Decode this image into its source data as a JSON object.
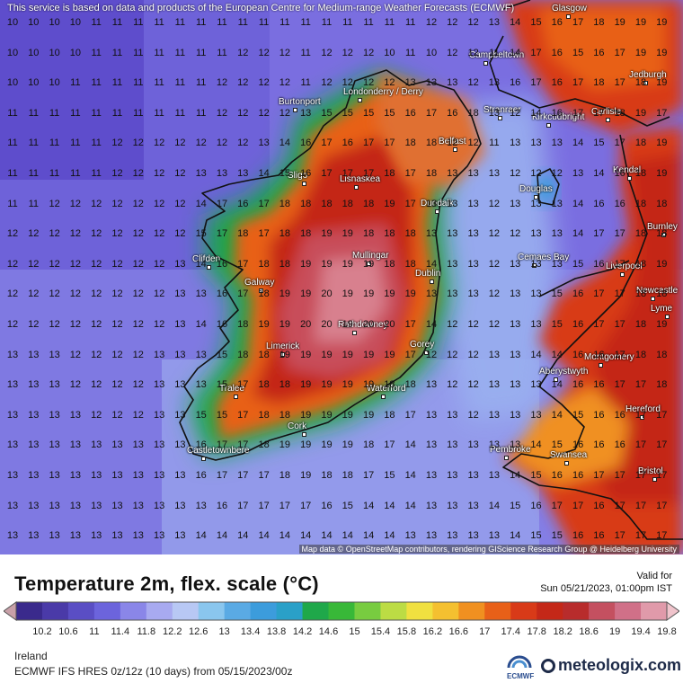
{
  "map": {
    "notice": "This service is based on data and products of the European Centre for Medium-range Weather Forecasts (ECMWF)",
    "attribution": "Map data © OpenStreetMap contributors, rendering GIScience Research Group @ Heidelberg University",
    "cities": [
      "Glasgow",
      "Campbeltown",
      "Jedburgh",
      "Londonderry / Derry",
      "Burtonport",
      "Stranraer",
      "Kirkcudbright",
      "Carlisle",
      "Belfast",
      "Sligo",
      "Lisnaskea",
      "Kendal",
      "Douglas",
      "Dundalk",
      "Burnley",
      "Clifden",
      "Mullingar",
      "Cemaes Bay",
      "Liverpool",
      "Dublin",
      "Galway",
      "Newcastle",
      "Rathdowney",
      "Lyme",
      "Limerick",
      "Gorey",
      "Montgomery",
      "Aberystwyth",
      "Tralee",
      "Waterford",
      "Hereford",
      "Cork",
      "Pembroke",
      "Swansea",
      "Castletownbere",
      "Bristol"
    ],
    "grid_rows": [
      "10 10 10 10 11 11 11 11 11 11 11 11 11 11 11 11 11 11 11 11 12 12 12 13 14 15 16 17 18 19 19 19",
      "10 10 10 10 11 11 11 11 11 11 11 12 12 12 11 12 12 12 10 11 10 12 12 11 14 17 16 15 16 17 19 19",
      "10 10 10 11 11 11 11 11 11 11 12 12 12 12 11 12 12 12 12 13 13 13 12 13 16 17 16 17 18 17 18 19",
      "11 11 11 11 11 11 11 11 11 11 12 12 12 12 13 15 15 15 15 16 17 16 18 13 12 14 16 17 17 18 19 17",
      "11 11 11 11 11 12 12 12 12 12 12 12 13 14 16 17 16 17 17 18 18 12 12 11 13 13 13 14 15 17 18 19",
      "11 11 11 11 11 12 12 12 12 13 13 13 14 15 16 17 17 17 18 17 18 13 13 13 12 12 12 13 14 16 18 19",
      "11 11 12 12 12 12 12 12 12 14 17 16 17 18 18 18 18 18 19 17 13 13 13 12 13 13 13 14 16 16 18 18",
      "12 12 12 12 12 12 12 12 12 15 17 18 17 18 18 19 19 18 18 18 13 13 13 12 12 13 13 14 17 17 18 18",
      "12 12 12 12 12 12 12 12 13 14 16 17 18 18 19 19 19 19 18 18 14 13 13 12 13 13 13 15 16 17 18 19",
      "12 12 12 12 12 12 12 12 13 13 16 17 18 19 19 20 19 19 19 19 13 13 13 12 13 13 15 16 17 17 18 18",
      "12 12 12 12 12 12 12 12 13 14 16 18 19 19 20 20 19 20 20 17 14 12 12 12 13 13 15 16 17 17 18 19",
      "13 13 13 12 12 12 12 13 13 13 15 18 18 19 19 19 19 19 19 17 12 12 12 13 13 14 14 16 16 17 18 18",
      "13 13 13 12 12 12 12 13 13 13 15 17 18 18 19 19 19 19 18 18 13 12 12 13 13 13 14 16 16 17 17 18",
      "13 13 13 13 12 12 12 13 13 15 15 17 18 18 19 19 19 19 18 17 13 13 12 13 13 13 14 15 16 16 17 17",
      "13 13 13 13 13 13 13 13 13 16 17 17 18 19 19 19 19 18 17 14 13 13 13 13 13 14 15 16 16 16 17 17",
      "13 13 13 13 13 13 13 13 13 16 17 17 17 18 19 18 18 17 15 14 13 13 13 13 14 15 16 16 17 17 17 17",
      "13 13 13 13 13 13 13 13 13 13 16 17 17 17 17 16 15 14 14 14 13 13 13 14 15 16 17 17 16 17 17 17",
      "13 13 13 13 13 13 13 13 13 14 14 14 14 14 14 14 14 14 14 13 13 13 13 13 14 15 15 16 16 17 17 17",
      "13 13 13 13 13 13 13 13 14 14 14 14 14 14 14 14 14 14 13 13 13 13 13 13 14 15 16 16 16 17 17 17"
    ]
  },
  "legend": {
    "title": "Temperature 2m, flex. scale (°C)",
    "valid_label": "Valid for",
    "valid_time": "Sun 05/21/2023, 01:00pm IST",
    "ticks": [
      "10.2",
      "10.6",
      "11",
      "11.4",
      "11.8",
      "12.2",
      "12.6",
      "13",
      "13.4",
      "13.8",
      "14.2",
      "14.6",
      "15",
      "15.4",
      "15.8",
      "16.2",
      "16.6",
      "17",
      "17.4",
      "17.8",
      "18.2",
      "18.6",
      "19",
      "19.4",
      "19.8"
    ],
    "colors": [
      "#c8a0a8",
      "#3a2a8c",
      "#4a3aa8",
      "#5a4ec4",
      "#6c64dc",
      "#8a86e8",
      "#a8aaf0",
      "#b8c8f4",
      "#8ac6ee",
      "#5aaae4",
      "#3c9cdc",
      "#2aa0c8",
      "#1fa84a",
      "#38b838",
      "#78cc40",
      "#bcdc44",
      "#f0e040",
      "#f4c030",
      "#f09020",
      "#e86018",
      "#d83a18",
      "#c42818",
      "#b82c2c",
      "#c45060",
      "#d07088",
      "#e09aaa",
      "#f0c4cc"
    ]
  },
  "footer": {
    "region": "Ireland",
    "model": "ECMWF IFS HRES 0z/12z (10 days) from  05/15/2023/00z",
    "ecmwf": "ECMWF",
    "brand": "meteologix.com"
  }
}
